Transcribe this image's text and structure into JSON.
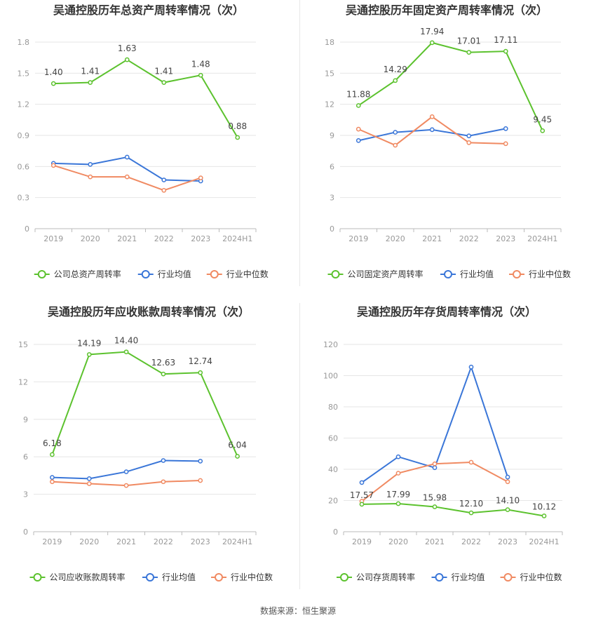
{
  "source": "数据来源：恒生聚源",
  "colors": {
    "company": "#5cc22e",
    "avg": "#3a76d8",
    "median": "#f08a62",
    "grid": "#e6e6e6",
    "axis": "#999999",
    "title": "#333333"
  },
  "legend": {
    "avg": "行业均值",
    "median": "行业中位数"
  },
  "chart_data": [
    {
      "type": "line",
      "title": "吴通控股历年总资产周转率情况（次）",
      "categories": [
        "2019",
        "2020",
        "2021",
        "2022",
        "2023",
        "2024H1"
      ],
      "ylim": [
        0,
        1.8
      ],
      "yticks": [
        "0",
        "0.3",
        "0.6",
        "0.9",
        "1.2",
        "1.5",
        "1.8"
      ],
      "legend_position": "bottom",
      "series": [
        {
          "name": "公司总资产周转率",
          "role": "company",
          "values": [
            1.4,
            1.41,
            1.63,
            1.41,
            1.48,
            0.88
          ],
          "labels": [
            "1.40",
            "1.41",
            "1.63",
            "1.41",
            "1.48",
            "0.88"
          ]
        },
        {
          "name": "行业均值",
          "role": "avg",
          "values": [
            0.63,
            0.62,
            0.69,
            0.47,
            0.46,
            null
          ]
        },
        {
          "name": "行业中位数",
          "role": "median",
          "values": [
            0.61,
            0.5,
            0.5,
            0.37,
            0.49,
            null
          ]
        }
      ]
    },
    {
      "type": "line",
      "title": "吴通控股历年固定资产周转率情况（次）",
      "categories": [
        "2019",
        "2020",
        "2021",
        "2022",
        "2023",
        "2024H1"
      ],
      "ylim": [
        0,
        18
      ],
      "yticks": [
        "0",
        "3",
        "6",
        "9",
        "12",
        "15",
        "18"
      ],
      "legend_position": "bottom",
      "series": [
        {
          "name": "公司固定资产周转率",
          "role": "company",
          "values": [
            11.88,
            14.29,
            17.94,
            17.01,
            17.11,
            9.45
          ],
          "labels": [
            "11.88",
            "14.29",
            "17.94",
            "17.01",
            "17.11",
            "9.45"
          ]
        },
        {
          "name": "行业均值",
          "role": "avg",
          "values": [
            8.5,
            9.3,
            9.55,
            8.95,
            9.65,
            null
          ]
        },
        {
          "name": "行业中位数",
          "role": "median",
          "values": [
            9.6,
            8.05,
            10.8,
            8.3,
            8.2,
            null
          ]
        }
      ]
    },
    {
      "type": "line",
      "title": "吴通控股历年应收账款周转率情况（次）",
      "categories": [
        "2019",
        "2020",
        "2021",
        "2022",
        "2023",
        "2024H1"
      ],
      "ylim": [
        0,
        15
      ],
      "yticks": [
        "0",
        "3",
        "6",
        "9",
        "12",
        "15"
      ],
      "legend_position": "bottom",
      "series": [
        {
          "name": "公司应收账款周转率",
          "role": "company",
          "values": [
            6.18,
            14.19,
            14.4,
            12.63,
            12.74,
            6.04
          ],
          "labels": [
            "6.18",
            "14.19",
            "14.40",
            "12.63",
            "12.74",
            "6.04"
          ]
        },
        {
          "name": "行业均值",
          "role": "avg",
          "values": [
            4.35,
            4.25,
            4.8,
            5.7,
            5.65,
            null
          ]
        },
        {
          "name": "行业中位数",
          "role": "median",
          "values": [
            4.0,
            3.85,
            3.7,
            4.0,
            4.1,
            null
          ]
        }
      ]
    },
    {
      "type": "line",
      "title": "吴通控股历年存货周转率情况（次）",
      "categories": [
        "2019",
        "2020",
        "2021",
        "2022",
        "2023",
        "2024H1"
      ],
      "ylim": [
        0,
        120
      ],
      "yticks": [
        "0",
        "20",
        "40",
        "60",
        "80",
        "100",
        "120"
      ],
      "legend_position": "bottom",
      "series": [
        {
          "name": "公司存货周转率",
          "role": "company",
          "values": [
            17.57,
            17.99,
            15.98,
            12.1,
            14.1,
            10.12
          ],
          "labels": [
            "17.57",
            "17.99",
            "15.98",
            "12.10",
            "14.10",
            "10.12"
          ]
        },
        {
          "name": "行业均值",
          "role": "avg",
          "values": [
            31.5,
            48.0,
            41.0,
            105.5,
            35.0,
            null
          ]
        },
        {
          "name": "行业中位数",
          "role": "median",
          "values": [
            19.5,
            37.5,
            43.5,
            44.5,
            32.0,
            null
          ]
        }
      ]
    }
  ]
}
